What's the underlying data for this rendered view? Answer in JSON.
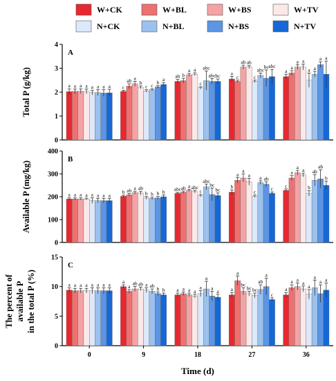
{
  "chart_data": {
    "type": "bar",
    "categories": [
      "0",
      "9",
      "18",
      "27",
      "36"
    ],
    "xlabel": "Time (d)",
    "legend": {
      "placement": "top",
      "items": [
        {
          "name": "W+CK",
          "color": "#e8282f"
        },
        {
          "name": "W+BL",
          "color": "#ef7070"
        },
        {
          "name": "W+BS",
          "color": "#f4a3a5"
        },
        {
          "name": "W+TV",
          "color": "#fde8e8"
        },
        {
          "name": "N+CK",
          "color": "#dce9fa"
        },
        {
          "name": "N+BL",
          "color": "#9cc1ee"
        },
        {
          "name": "N+BS",
          "color": "#5b95e4"
        },
        {
          "name": "N+TV",
          "color": "#1668d6"
        }
      ]
    },
    "panels": [
      {
        "label": "A",
        "ylabel": "Total P (g/kg)",
        "ylim": [
          0,
          4
        ],
        "yticks": [
          0,
          1,
          2,
          3,
          4
        ],
        "series": [
          {
            "name": "W+CK",
            "values": [
              2.02,
              2.03,
              2.45,
              2.55,
              2.65
            ],
            "errors": [
              0.12,
              0.04,
              0.08,
              0.1,
              0.1
            ],
            "letters": [
              "a",
              "c",
              "ab",
              "a",
              "a"
            ]
          },
          {
            "name": "W+BL",
            "values": [
              2.03,
              2.25,
              2.48,
              2.45,
              2.8
            ],
            "errors": [
              0.1,
              0.1,
              0.1,
              0.05,
              0.1
            ],
            "letters": [
              "a",
              "ab",
              "b",
              "c",
              "a"
            ]
          },
          {
            "name": "W+BS",
            "values": [
              2.04,
              2.35,
              2.72,
              3.05,
              3.05
            ],
            "errors": [
              0.1,
              0.1,
              0.06,
              0.08,
              0.1
            ],
            "letters": [
              "a",
              "a",
              "a",
              "ab",
              "a"
            ]
          },
          {
            "name": "W+TV",
            "values": [
              2.03,
              2.2,
              2.75,
              3.05,
              3.05
            ],
            "errors": [
              0.1,
              0.06,
              0.06,
              0.06,
              0.12
            ],
            "letters": [
              "a",
              "b",
              "a",
              "ab",
              "a"
            ]
          },
          {
            "name": "N+CK",
            "values": [
              1.98,
              2.05,
              2.18,
              2.45,
              2.5
            ],
            "errors": [
              0.1,
              0.05,
              0.05,
              0.05,
              0.3
            ],
            "letters": [
              "a",
              "c",
              "c",
              "c",
              "a"
            ]
          },
          {
            "name": "N+BL",
            "values": [
              1.98,
              2.1,
              2.48,
              2.7,
              2.75
            ],
            "errors": [
              0.12,
              0.04,
              0.4,
              0.1,
              0.12
            ],
            "letters": [
              "a",
              "c",
              "abc",
              "abc",
              "a"
            ]
          },
          {
            "name": "N+BS",
            "values": [
              1.96,
              2.22,
              2.45,
              2.58,
              3.15
            ],
            "errors": [
              0.14,
              0.05,
              0.12,
              0.35,
              0.12
            ],
            "letters": [
              "a",
              "b",
              "abc",
              "bc",
              "a"
            ]
          },
          {
            "name": "N+TV",
            "values": [
              1.97,
              2.32,
              2.45,
              2.65,
              2.75
            ],
            "errors": [
              0.15,
              0.08,
              0.1,
              0.3,
              0.55
            ],
            "letters": [
              "a",
              "a",
              "bc",
              "abc",
              "a"
            ]
          }
        ]
      },
      {
        "label": "B",
        "ylabel": "Available P (mg/kg)",
        "ylim": [
          0,
          400
        ],
        "yticks": [
          0,
          100,
          200,
          300,
          400
        ],
        "series": [
          {
            "name": "W+CK",
            "values": [
              190,
              202,
              215,
              220,
              228
            ],
            "errors": [
              5,
              5,
              4,
              10,
              6
            ],
            "letters": [
              "a",
              "b",
              "abc",
              "b",
              "c"
            ]
          },
          {
            "name": "W+BL",
            "values": [
              190,
              208,
              220,
              272,
              282
            ],
            "errors": [
              5,
              6,
              5,
              12,
              10
            ],
            "letters": [
              "a",
              "ab",
              "ab",
              "a",
              "a"
            ]
          },
          {
            "name": "W+BS",
            "values": [
              190,
              218,
              228,
              282,
              305
            ],
            "errors": [
              5,
              6,
              5,
              18,
              10
            ],
            "letters": [
              "a",
              "a",
              "a",
              "a",
              "a"
            ]
          },
          {
            "name": "W+TV",
            "values": [
              190,
              216,
              222,
              265,
              295
            ],
            "errors": [
              4,
              8,
              6,
              15,
              8
            ],
            "letters": [
              "a",
              "ab",
              "abc",
              "a",
              "a"
            ]
          },
          {
            "name": "N+CK",
            "values": [
              183,
              195,
              205,
              202,
              215
            ],
            "errors": [
              12,
              6,
              5,
              5,
              12
            ],
            "letters": [
              "a",
              "b",
              "c",
              "c",
              "b"
            ]
          },
          {
            "name": "N+BL",
            "values": [
              183,
              193,
              243,
              262,
              272
            ],
            "errors": [
              10,
              5,
              12,
              8,
              25
            ],
            "letters": [
              "a",
              "b",
              "abc",
              "a",
              "ab"
            ]
          },
          {
            "name": "N+BS",
            "values": [
              183,
              195,
              210,
              255,
              278
            ],
            "errors": [
              10,
              6,
              28,
              10,
              40
            ],
            "letters": [
              "a",
              "b",
              "bc",
              "ab",
              "ab"
            ]
          },
          {
            "name": "N+TV",
            "values": [
              183,
              200,
              205,
              215,
              250
            ],
            "errors": [
              10,
              8,
              12,
              6,
              18
            ],
            "letters": [
              "a",
              "b",
              "bc",
              "c",
              "b"
            ]
          }
        ]
      },
      {
        "label": "C",
        "ylabel": [
          "The percent of",
          "available P",
          "in the total P (%)"
        ],
        "ylim": [
          0,
          15
        ],
        "yticks": [
          0,
          5,
          10,
          15
        ],
        "series": [
          {
            "name": "W+CK",
            "values": [
              9.4,
              10.0,
              8.6,
              8.6,
              8.6
            ],
            "errors": [
              0.4,
              0.3,
              0.3,
              0.4,
              0.4
            ],
            "letters": [
              "a",
              "a",
              "a",
              "a",
              "a"
            ]
          },
          {
            "name": "W+BL",
            "values": [
              9.3,
              9.2,
              8.8,
              11.0,
              9.8
            ],
            "errors": [
              0.4,
              0.3,
              0.3,
              0.8,
              0.5
            ],
            "letters": [
              "a",
              "a",
              "a",
              "a",
              "a"
            ]
          },
          {
            "name": "W+BS",
            "values": [
              9.3,
              9.6,
              8.6,
              9.2,
              10.0
            ],
            "errors": [
              0.4,
              0.4,
              0.3,
              0.6,
              0.6
            ],
            "letters": [
              "a",
              "ab",
              "a",
              "bc",
              "a"
            ]
          },
          {
            "name": "W+TV",
            "values": [
              9.3,
              9.6,
              8.4,
              8.8,
              9.6
            ],
            "errors": [
              0.4,
              0.3,
              0.3,
              0.4,
              0.5
            ],
            "letters": [
              "a",
              "ab",
              "a",
              "bc",
              "a"
            ]
          },
          {
            "name": "N+CK",
            "values": [
              9.3,
              9.4,
              8.8,
              8.5,
              8.7
            ],
            "errors": [
              0.5,
              0.4,
              0.5,
              0.4,
              0.8
            ],
            "letters": [
              "a",
              "a",
              "a",
              "bc",
              "a"
            ]
          },
          {
            "name": "N+BL",
            "values": [
              9.3,
              9.2,
              9.6,
              9.5,
              9.8
            ],
            "errors": [
              0.5,
              0.4,
              1.3,
              0.8,
              1.3
            ],
            "letters": [
              "a",
              "ab",
              "a",
              "ab",
              "a"
            ]
          },
          {
            "name": "N+BS",
            "values": [
              9.3,
              8.8,
              8.4,
              10.0,
              8.8
            ],
            "errors": [
              0.5,
              0.3,
              0.8,
              1.4,
              1.5
            ],
            "letters": [
              "a",
              "b",
              "a",
              "a",
              "a"
            ]
          },
          {
            "name": "N+TV",
            "values": [
              9.3,
              8.6,
              8.2,
              7.8,
              9.4
            ],
            "errors": [
              0.5,
              0.3,
              0.5,
              0.3,
              1.2
            ],
            "letters": [
              "a",
              "b",
              "a",
              "c",
              "a"
            ]
          }
        ]
      }
    ]
  }
}
